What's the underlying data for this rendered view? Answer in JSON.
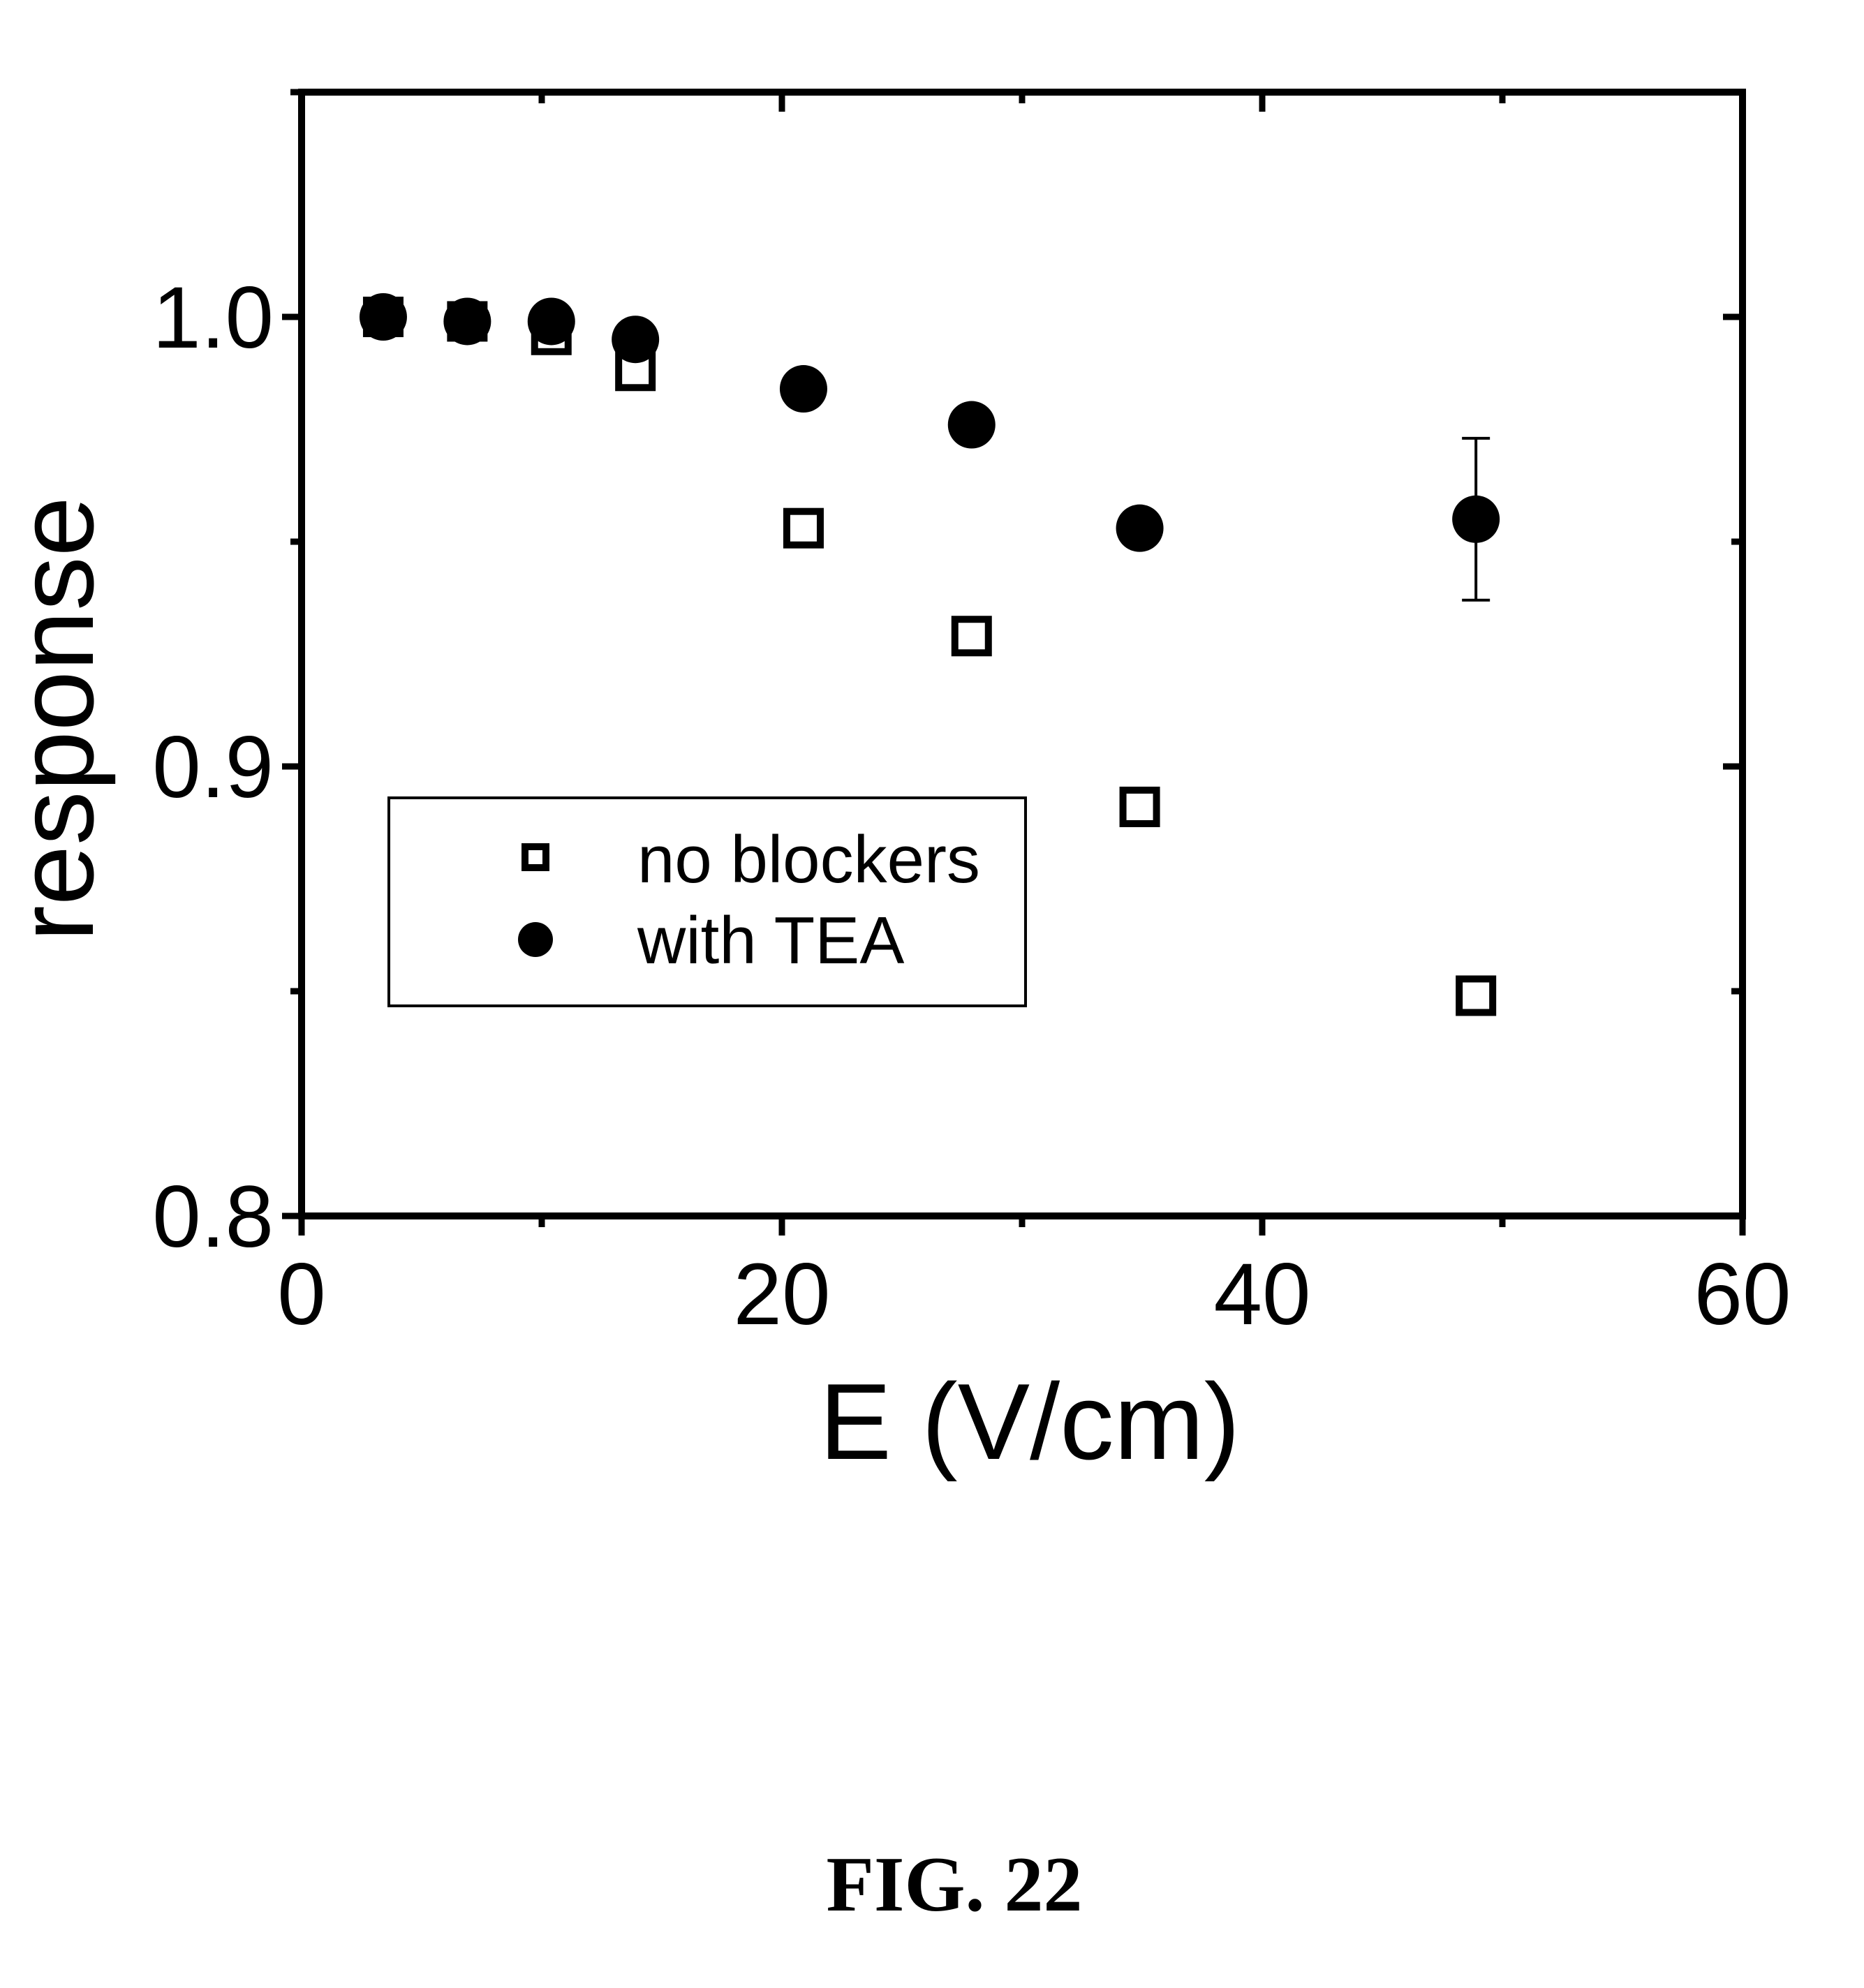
{
  "chart_data": {
    "type": "scatter",
    "xlabel": "E (V/cm)",
    "ylabel": "response",
    "xlim": [
      0,
      60
    ],
    "ylim": [
      0.8,
      1.05
    ],
    "x_ticks": [
      "0",
      "20",
      "40",
      "60"
    ],
    "y_ticks": [
      "0.8",
      "0.9",
      "1.0"
    ],
    "x_tick_values": [
      0,
      20,
      40,
      60
    ],
    "y_tick_values": [
      0.8,
      0.9,
      1.0
    ],
    "x_minor_ticks": [
      10,
      30,
      50
    ],
    "y_minor_ticks": [
      0.85,
      0.95,
      1.05
    ],
    "grid": false,
    "legend_position": "middle-left",
    "series": [
      {
        "name": "no blockers",
        "marker": "open-square",
        "x": [
          3.4,
          6.9,
          10.4,
          13.9,
          20.9,
          27.9,
          34.9,
          48.9
        ],
        "y": [
          1.0,
          0.999,
          0.996,
          0.988,
          0.953,
          0.929,
          0.891,
          0.849
        ]
      },
      {
        "name": "with TEA",
        "marker": "filled-circle",
        "x": [
          3.4,
          6.9,
          10.4,
          13.9,
          20.9,
          27.9,
          34.9,
          48.9
        ],
        "y": [
          1.0,
          0.999,
          0.999,
          0.995,
          0.984,
          0.976,
          0.953,
          0.955
        ],
        "error_bars": [
          null,
          null,
          null,
          null,
          null,
          null,
          null,
          0.018
        ]
      }
    ]
  },
  "caption": "FIG. 22"
}
